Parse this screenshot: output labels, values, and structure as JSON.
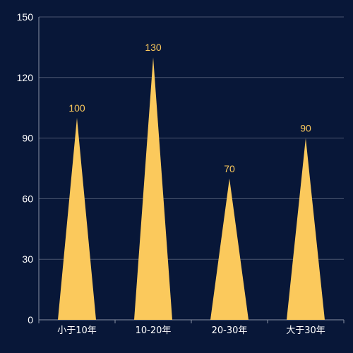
{
  "colors": {
    "background": "#081738",
    "bar": "#fbc95c",
    "label": "#fbc95c",
    "axis_text": "#ffffff",
    "grid": "#4a5670",
    "axis_line": "#8a93a6"
  },
  "chart_data": {
    "type": "bar",
    "bar_shape": "triangle",
    "title": "",
    "xlabel": "",
    "ylabel": "",
    "categories": [
      "小于10年",
      "10-20年",
      "20-30年",
      "大于30年"
    ],
    "values": [
      100,
      130,
      70,
      90
    ],
    "ylim": [
      0,
      150
    ],
    "yticks": [
      0,
      30,
      60,
      90,
      120,
      150
    ],
    "grid": true,
    "legend": "none",
    "data_labels": true
  }
}
